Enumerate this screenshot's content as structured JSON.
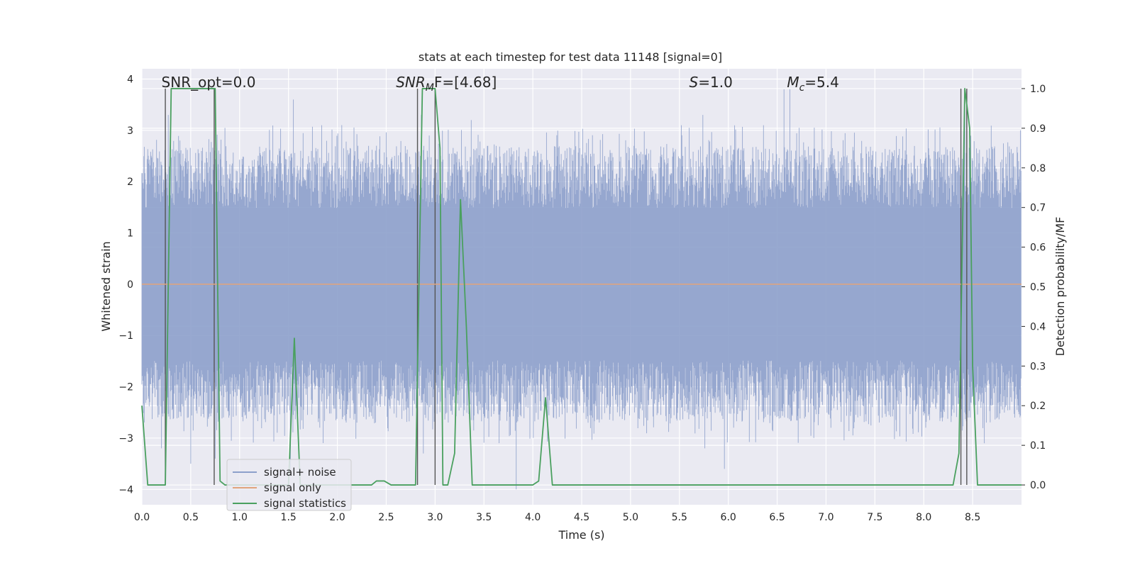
{
  "chart_data": {
    "type": "line",
    "title": "stats at each timestep for test data 11148 [signal=0]",
    "xlabel": "Time (s)",
    "ylabel": "Whitened strain",
    "ylabel_right": "Detection probability/MF",
    "xlim": [
      0.0,
      9.0
    ],
    "ylim": [
      -4.3,
      4.2
    ],
    "ylim_right": [
      -0.05,
      1.05
    ],
    "x_ticks": [
      "0.0",
      "0.5",
      "1.0",
      "1.5",
      "2.0",
      "2.5",
      "3.0",
      "3.5",
      "4.0",
      "4.5",
      "5.0",
      "5.5",
      "6.0",
      "6.5",
      "7.0",
      "7.5",
      "8.0",
      "8.5"
    ],
    "y_ticks": [
      "4",
      "3",
      "2",
      "1",
      "0",
      "−1",
      "−2",
      "−3",
      "−4"
    ],
    "y_ticks_right": [
      "1.0",
      "0.9",
      "0.8",
      "0.7",
      "0.6",
      "0.5",
      "0.4",
      "0.3",
      "0.2",
      "0.1",
      "0.0"
    ],
    "grid": true,
    "legend_position": "lower-left",
    "annotations": [
      {
        "id": "snr-opt",
        "plain": "SNR_opt=0.0",
        "x": 0.2
      },
      {
        "id": "snr-mf",
        "base": "SNR",
        "sub": "M",
        "tail": "F=[4.68]",
        "x": 2.6
      },
      {
        "id": "s",
        "base": "S",
        "tail": "=1.0",
        "x": 5.6
      },
      {
        "id": "mc",
        "base": "M",
        "sub": "c",
        "tail": "=5.4",
        "x": 6.6
      }
    ],
    "series": [
      {
        "name": "signal+ noise",
        "color": "#8da0cb",
        "kind": "noise",
        "envelope_low": -2.7,
        "envelope_high": 2.7,
        "peaks": [
          {
            "x": 0.27,
            "y": 3.3
          },
          {
            "x": 0.44,
            "y": 2.4
          },
          {
            "x": 1.55,
            "y": 3.6
          },
          {
            "x": 1.84,
            "y": 3.1
          },
          {
            "x": 2.86,
            "y": 3.3
          },
          {
            "x": 3.37,
            "y": 3.2
          },
          {
            "x": 5.52,
            "y": 3.1
          },
          {
            "x": 5.74,
            "y": 3.3
          },
          {
            "x": 6.36,
            "y": 3.1
          },
          {
            "x": 6.57,
            "y": 3.8
          },
          {
            "x": 6.63,
            "y": 3.8
          },
          {
            "x": 8.42,
            "y": 3.7
          },
          {
            "x": 0.2,
            "y": -3.2
          },
          {
            "x": 0.5,
            "y": -3.5
          },
          {
            "x": 0.75,
            "y": -3.4
          },
          {
            "x": 1.52,
            "y": -3.6
          },
          {
            "x": 2.88,
            "y": -3.3
          },
          {
            "x": 3.83,
            "y": -4.0
          },
          {
            "x": 5.76,
            "y": -3.2
          },
          {
            "x": 5.96,
            "y": -3.6
          },
          {
            "x": 8.62,
            "y": -3.1
          }
        ]
      },
      {
        "name": "signal only",
        "color": "#e1a47c",
        "x": [
          0.0,
          9.0
        ],
        "y": [
          0.0,
          0.0
        ]
      },
      {
        "name": "signal statistics",
        "color": "#4aa05f",
        "axis": "right",
        "x": [
          0.0,
          0.06,
          0.12,
          0.2,
          0.24,
          0.3,
          0.33,
          0.7,
          0.75,
          0.8,
          0.85,
          0.9,
          1.5,
          1.56,
          1.62,
          1.68,
          1.75,
          2.35,
          2.4,
          2.48,
          2.55,
          2.62,
          2.8,
          2.87,
          2.93,
          3.0,
          3.05,
          3.08,
          3.13,
          3.2,
          3.26,
          3.32,
          3.38,
          3.44,
          3.52,
          4.0,
          4.06,
          4.13,
          4.2,
          4.3,
          8.3,
          8.36,
          8.42,
          8.47,
          8.5,
          8.55,
          8.6,
          9.0
        ],
        "y": [
          0.2,
          0.0,
          0.0,
          0.0,
          0.0,
          1.0,
          1.0,
          1.0,
          1.0,
          0.01,
          0.0,
          0.0,
          0.0,
          0.37,
          0.0,
          0.0,
          0.0,
          0.0,
          0.01,
          0.01,
          0.0,
          0.0,
          0.0,
          1.0,
          1.0,
          1.0,
          0.85,
          0.0,
          0.0,
          0.08,
          0.72,
          0.4,
          0.0,
          0.0,
          0.0,
          0.0,
          0.01,
          0.22,
          0.0,
          0.0,
          0.0,
          0.08,
          1.0,
          0.9,
          0.3,
          0.0,
          0.0,
          0.0
        ]
      }
    ],
    "vertical_markers": [
      0.24,
      0.74,
      2.82,
      3.0,
      8.38,
      8.44
    ]
  }
}
